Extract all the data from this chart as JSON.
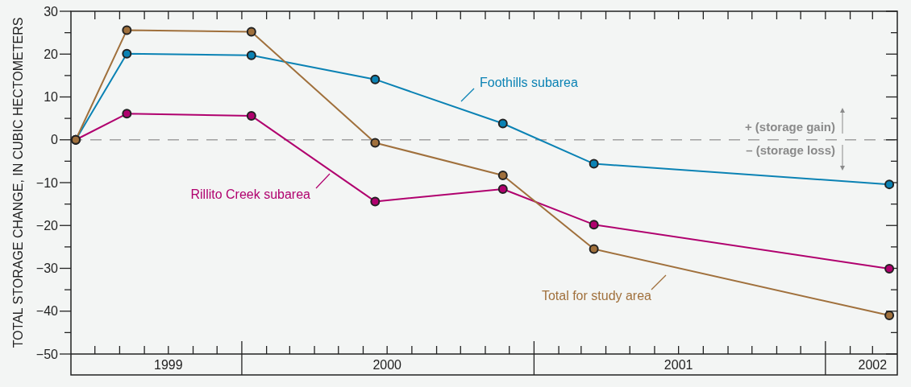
{
  "chart_data": {
    "type": "line",
    "ylabel": "TOTAL STORAGE CHANGE, IN CUBIC HECTOMETERS",
    "x": [
      "1999-06-07",
      "1999-08-10",
      "2000-01-13",
      "2000-06-16",
      "2000-11-23",
      "2001-03-17",
      "2002-03-22"
    ],
    "series": [
      {
        "name": "Foothills subarea",
        "color": "#0a82b4",
        "values": [
          0,
          20.1,
          19.7,
          14.1,
          3.8,
          -5.6,
          -10.4
        ]
      },
      {
        "name": "Rillito Creek subarea",
        "color": "#b0006e",
        "values": [
          0,
          6.1,
          5.6,
          -14.4,
          -11.5,
          -19.8,
          -30.1
        ]
      },
      {
        "name": "Total for study area",
        "color": "#a0703c",
        "values": [
          0,
          25.6,
          25.2,
          -0.7,
          -8.3,
          -25.5,
          -41
        ]
      }
    ],
    "xlim": [
      "1999-06-01",
      "2002-04-01"
    ],
    "xticks": [
      {
        "value": "1999-07-01",
        "label": null
      },
      {
        "value": "1999-08-01",
        "label": null
      },
      {
        "value": "1999-09-01",
        "label": null
      },
      {
        "value": "1999-10-01",
        "label": "1999"
      },
      {
        "value": "1999-11-01",
        "label": null
      },
      {
        "value": "1999-12-01",
        "label": null
      },
      {
        "value": "2000-01-01",
        "label": null
      },
      {
        "value": "2000-02-01",
        "label": null
      },
      {
        "value": "2000-03-01",
        "label": null
      },
      {
        "value": "2000-04-01",
        "label": null
      },
      {
        "value": "2000-05-01",
        "label": null
      },
      {
        "value": "2000-06-01",
        "label": null
      },
      {
        "value": "2000-07-01",
        "label": "2000"
      },
      {
        "value": "2000-08-01",
        "label": null
      },
      {
        "value": "2000-09-01",
        "label": null
      },
      {
        "value": "2000-10-01",
        "label": null
      },
      {
        "value": "2000-11-01",
        "label": null
      },
      {
        "value": "2000-12-01",
        "label": null
      },
      {
        "value": "2001-01-01",
        "label": null
      },
      {
        "value": "2001-02-01",
        "label": null
      },
      {
        "value": "2001-03-01",
        "label": null
      },
      {
        "value": "2001-04-01",
        "label": null
      },
      {
        "value": "2001-05-01",
        "label": null
      },
      {
        "value": "2001-06-01",
        "label": null
      },
      {
        "value": "2001-07-01",
        "label": "2001"
      },
      {
        "value": "2001-08-01",
        "label": null
      },
      {
        "value": "2001-09-01",
        "label": null
      },
      {
        "value": "2001-10-01",
        "label": null
      },
      {
        "value": "2001-11-01",
        "label": null
      },
      {
        "value": "2001-12-01",
        "label": null
      },
      {
        "value": "2002-01-01",
        "label": null
      },
      {
        "value": "2002-02-01",
        "label": null
      },
      {
        "value": "2002-03-01",
        "label": "2002"
      }
    ],
    "ylim": [
      -50,
      30
    ],
    "yticks": [
      -50,
      {
        "value": -45,
        "label": null
      },
      -40,
      {
        "value": -35,
        "label": null
      },
      -30,
      {
        "value": -25,
        "label": null
      },
      -20,
      {
        "value": -15,
        "label": null
      },
      -10,
      {
        "value": -5,
        "label": null
      },
      0,
      {
        "value": 5,
        "label": null
      },
      10,
      {
        "value": 15,
        "label": null
      },
      20,
      {
        "value": 25,
        "label": null
      },
      30
    ],
    "ref_lines": [
      {
        "axis": "y",
        "value": 0,
        "color": "#a0a0a0",
        "line_style": "dashed"
      }
    ],
    "annotations": [
      "+ (storage gain)",
      "– (storage loss)"
    ],
    "marker": "circle",
    "line_style": "solid",
    "grid": false,
    "legend": "center"
  }
}
